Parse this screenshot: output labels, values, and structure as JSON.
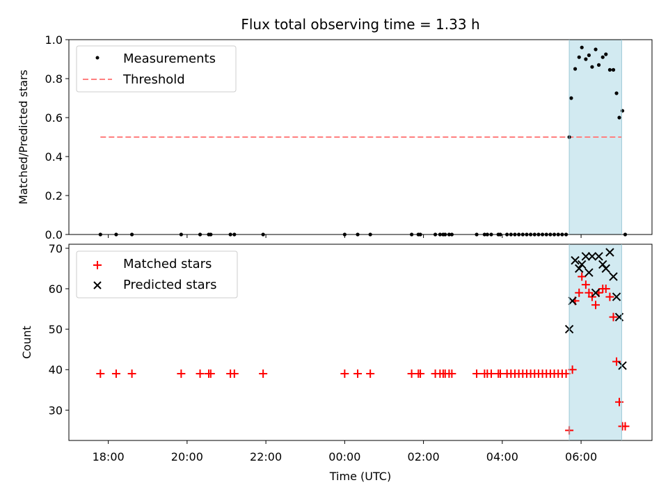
{
  "chart_data": [
    {
      "type": "scatter",
      "title": "Flux total observing time = 1.33 h",
      "xlabel": "",
      "ylabel": "Matched/Predicted stars",
      "ylim": [
        0,
        1.0
      ],
      "yticks": [
        "0.0",
        "0.2",
        "0.4",
        "0.6",
        "0.8",
        "1.0"
      ],
      "xlim": [
        17.0,
        7.8
      ],
      "xticks": [
        "18:00",
        "20:00",
        "22:00",
        "00:00",
        "02:00",
        "04:00",
        "06:00"
      ],
      "legend": {
        "position": "upper-left",
        "entries": [
          "Measurements",
          "Threshold"
        ]
      },
      "shaded_region": {
        "x": [
          5.7,
          7.03
        ],
        "color": "#add8e6"
      },
      "threshold": {
        "name": "Threshold",
        "y": 0.5,
        "x": [
          17.8,
          7.03
        ],
        "color": "#ff7f7f",
        "style": "dashed"
      },
      "series": [
        {
          "name": "Measurements",
          "marker": "dot",
          "color": "#000000",
          "x": [
            17.8,
            18.2,
            18.6,
            19.85,
            20.33,
            20.55,
            20.6,
            21.1,
            21.2,
            21.93,
            0.0,
            0.33,
            0.65,
            1.7,
            1.87,
            1.92,
            2.3,
            2.42,
            2.5,
            2.55,
            2.65,
            2.72,
            3.35,
            3.55,
            3.62,
            3.72,
            3.9,
            3.95,
            4.12,
            4.22,
            4.32,
            4.42,
            4.52,
            4.62,
            4.72,
            4.82,
            4.92,
            5.02,
            5.12,
            5.22,
            5.32,
            5.42,
            5.52,
            5.62,
            5.7,
            5.75,
            5.85,
            5.95,
            6.02,
            6.12,
            6.2,
            6.28,
            6.37,
            6.45,
            6.55,
            6.63,
            6.73,
            6.82,
            6.9,
            6.97,
            7.05,
            7.12
          ],
          "y": [
            0,
            0,
            0,
            0,
            0,
            0,
            0,
            0,
            0,
            0,
            0,
            0,
            0,
            0,
            0,
            0,
            0,
            0,
            0,
            0,
            0,
            0,
            0,
            0,
            0,
            0,
            0,
            0,
            0,
            0,
            0,
            0,
            0,
            0,
            0,
            0,
            0,
            0,
            0,
            0,
            0,
            0,
            0,
            0,
            0.5,
            0.7,
            0.85,
            0.91,
            0.96,
            0.9,
            0.92,
            0.86,
            0.95,
            0.87,
            0.91,
            0.925,
            0.845,
            0.845,
            0.725,
            0.6,
            0.635,
            0.0
          ]
        }
      ]
    },
    {
      "type": "scatter",
      "title": "",
      "xlabel": "Time (UTC)",
      "ylabel": "Count",
      "ylim": [
        22.5,
        71
      ],
      "yticks": [
        "30",
        "40",
        "50",
        "60",
        "70"
      ],
      "xlim": [
        17.0,
        7.8
      ],
      "xticks": [
        "18:00",
        "20:00",
        "22:00",
        "00:00",
        "02:00",
        "04:00",
        "06:00"
      ],
      "legend": {
        "position": "upper-left",
        "entries": [
          "Matched stars",
          "Predicted stars"
        ]
      },
      "shaded_region": {
        "x": [
          5.7,
          7.03
        ],
        "color": "#add8e6"
      },
      "series": [
        {
          "name": "Matched stars",
          "marker": "plus",
          "color": "#ff0000",
          "x": [
            17.8,
            18.2,
            18.6,
            19.85,
            20.33,
            20.55,
            20.6,
            21.1,
            21.2,
            21.93,
            0.0,
            0.33,
            0.65,
            1.7,
            1.87,
            1.92,
            2.3,
            2.42,
            2.5,
            2.55,
            2.65,
            2.72,
            3.35,
            3.55,
            3.62,
            3.72,
            3.9,
            3.95,
            4.12,
            4.22,
            4.32,
            4.42,
            4.52,
            4.62,
            4.72,
            4.82,
            4.92,
            5.02,
            5.12,
            5.22,
            5.32,
            5.42,
            5.52,
            5.62,
            5.7,
            5.78,
            5.85,
            5.95,
            6.02,
            6.12,
            6.2,
            6.28,
            6.37,
            6.45,
            6.55,
            6.63,
            6.73,
            6.82,
            6.9,
            6.97,
            7.05,
            7.12
          ],
          "y": [
            39,
            39,
            39,
            39,
            39,
            39,
            39,
            39,
            39,
            39,
            39,
            39,
            39,
            39,
            39,
            39,
            39,
            39,
            39,
            39,
            39,
            39,
            39,
            39,
            39,
            39,
            39,
            39,
            39,
            39,
            39,
            39,
            39,
            39,
            39,
            39,
            39,
            39,
            39,
            39,
            39,
            39,
            39,
            39,
            25,
            40,
            57,
            59,
            63,
            61,
            59,
            58,
            56,
            59,
            60,
            60,
            58,
            53,
            42,
            32,
            26,
            26
          ]
        },
        {
          "name": "Predicted stars",
          "marker": "x",
          "color": "#000000",
          "x": [
            5.7,
            5.78,
            5.85,
            5.95,
            6.02,
            6.12,
            6.2,
            6.28,
            6.37,
            6.45,
            6.55,
            6.63,
            6.73,
            6.82,
            6.9,
            6.97,
            7.05
          ],
          "y": [
            50,
            57,
            67,
            65,
            66,
            68,
            64,
            68,
            59,
            68,
            66,
            65,
            69,
            63,
            58,
            53,
            41
          ]
        }
      ]
    }
  ]
}
